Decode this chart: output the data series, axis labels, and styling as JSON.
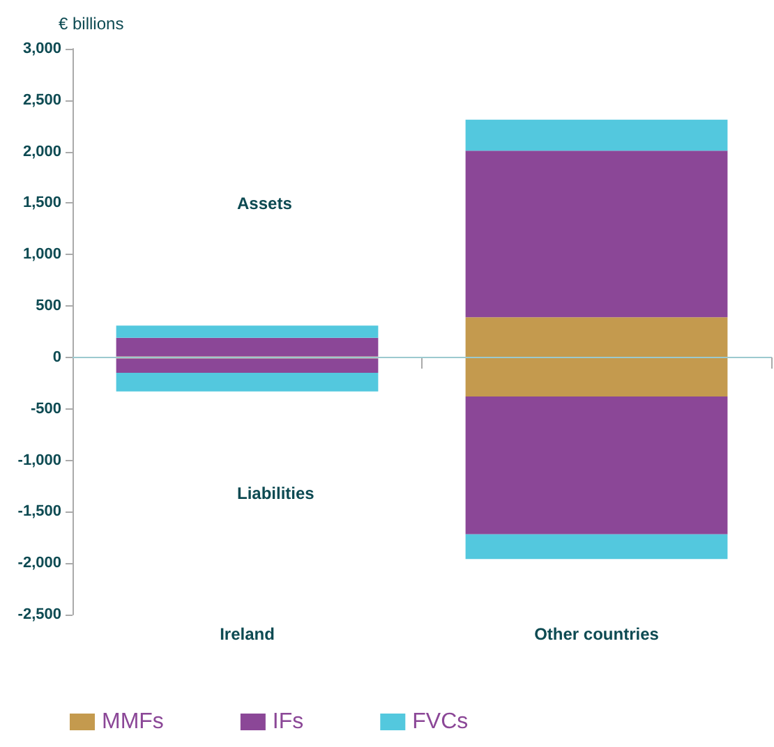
{
  "chart_data": {
    "type": "bar",
    "stacked": true,
    "ylabel": "€ billions",
    "categories": [
      "Ireland",
      "Other countries"
    ],
    "series": [
      {
        "name": "MMFs",
        "color": "#c49a4e",
        "values": [
          10,
          390
        ]
      },
      {
        "name": "IFs",
        "color": "#8b4797",
        "values": [
          180,
          1620
        ]
      },
      {
        "name": "FVCs",
        "color": "#53c8de",
        "values": [
          120,
          300
        ]
      },
      {
        "color": "#c49a4e",
        "values": [
          -10,
          -380
        ]
      },
      {
        "color": "#8b4797",
        "values": [
          -140,
          -1340
        ]
      },
      {
        "color": "#53c8de",
        "values": [
          -180,
          -240
        ]
      }
    ],
    "ylim": [
      -2500,
      3000
    ],
    "yticks": [
      {
        "value": -2500,
        "label": "-2,500"
      },
      {
        "value": -2000,
        "label": "-2,000"
      },
      {
        "value": -1500,
        "label": "-1,500"
      },
      {
        "value": -1000,
        "label": "-1,000"
      },
      {
        "value": -500,
        "label": "-500"
      },
      0,
      {
        "value": 500,
        "label": "500"
      },
      {
        "value": 1000,
        "label": "1,000"
      },
      {
        "value": 1500,
        "label": "1,500"
      },
      {
        "value": 2000,
        "label": "2,000"
      },
      {
        "value": 2500,
        "label": "2,500"
      },
      {
        "value": 3000,
        "label": "3,000"
      }
    ],
    "ref_lines": [
      {
        "axis": "y",
        "value": 0,
        "color": "#9cc9cf"
      }
    ],
    "annotations": [
      "Assets",
      "Liabilities"
    ],
    "grid": false,
    "legend": "bottom left"
  }
}
